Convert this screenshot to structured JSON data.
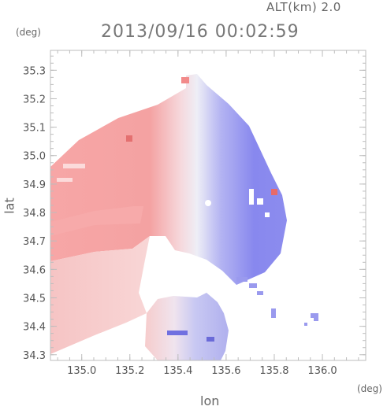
{
  "header": {
    "altitude": "ALT(km) 2.0",
    "timestamp": "2013/09/16 00:02:59"
  },
  "axes": {
    "y_unit": "(deg)",
    "x_unit": "(deg)",
    "xlabel": "lon",
    "ylabel": "lat",
    "x_ticks": [
      "135.0",
      "135.2",
      "135.4",
      "135.6",
      "135.8",
      "136.0"
    ],
    "y_ticks": [
      "35.3",
      "35.2",
      "35.1",
      "35.0",
      "34.9",
      "34.8",
      "34.7",
      "34.6",
      "34.5",
      "34.4",
      "34.3"
    ],
    "xlim": [
      134.87,
      136.18
    ],
    "ylim": [
      34.28,
      35.37
    ]
  },
  "colors": {
    "receding": "#f4a0a0",
    "approaching": "#8c8cf0",
    "neutral": "#f4f0f4"
  }
}
